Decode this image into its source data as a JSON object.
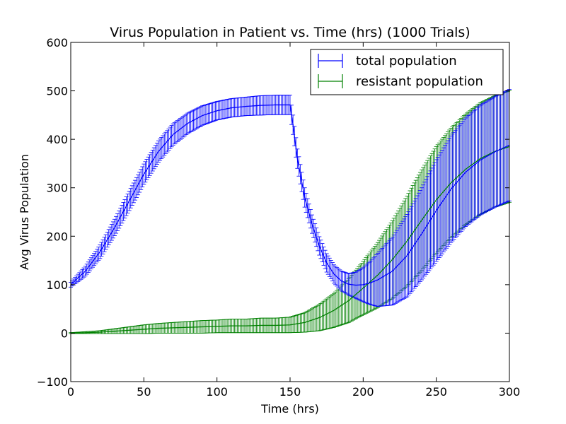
{
  "chart_data": {
    "type": "line",
    "title": "Virus Population in Patient vs. Time (hrs) (1000 Trials)",
    "xlabel": "Time (hrs)",
    "ylabel": "Avg Virus Population",
    "xlim": [
      0,
      300
    ],
    "ylim": [
      -100,
      600
    ],
    "xticks": [
      0,
      50,
      100,
      150,
      200,
      250,
      300
    ],
    "yticks": [
      -100,
      0,
      100,
      200,
      300,
      400,
      500,
      600
    ],
    "xtick_labels": [
      "0",
      "50",
      "100",
      "150",
      "200",
      "250",
      "300"
    ],
    "ytick_labels": [
      "−100",
      "0",
      "100",
      "200",
      "300",
      "400",
      "500",
      "600"
    ],
    "grid": false,
    "legend_position": "top-right",
    "error_bars": true,
    "series": [
      {
        "name": "total population",
        "color": "#0000ff",
        "x": [
          0,
          10,
          20,
          30,
          40,
          50,
          60,
          70,
          80,
          90,
          100,
          110,
          120,
          130,
          140,
          150,
          152,
          155,
          160,
          165,
          170,
          175,
          180,
          185,
          190,
          195,
          200,
          205,
          210,
          220,
          230,
          240,
          250,
          260,
          270,
          280,
          290,
          300
        ],
        "y": [
          100,
          128,
          168,
          218,
          273,
          328,
          375,
          410,
          433,
          449,
          459,
          465,
          468,
          470,
          471,
          471,
          430,
          360,
          280,
          225,
          180,
          145,
          122,
          108,
          101,
          99,
          100,
          104,
          110,
          128,
          160,
          205,
          253,
          297,
          332,
          357,
          374,
          388
        ],
        "err": [
          5,
          10,
          14,
          17,
          20,
          21,
          22,
          22,
          21,
          20,
          19,
          19,
          19,
          20,
          20,
          20,
          20,
          20,
          20,
          19,
          19,
          19,
          19,
          20,
          22,
          27,
          35,
          45,
          55,
          70,
          85,
          95,
          105,
          110,
          112,
          113,
          114,
          115
        ]
      },
      {
        "name": "resistant population",
        "color": "#008000",
        "x": [
          0,
          10,
          20,
          30,
          40,
          50,
          60,
          70,
          80,
          90,
          100,
          110,
          120,
          130,
          140,
          150,
          160,
          170,
          180,
          190,
          200,
          210,
          220,
          230,
          240,
          250,
          260,
          270,
          280,
          290,
          300
        ],
        "y": [
          0,
          1,
          2,
          4,
          6,
          8,
          10,
          11,
          12,
          13,
          14,
          15,
          15,
          16,
          16,
          17,
          22,
          32,
          47,
          67,
          93,
          120,
          152,
          190,
          233,
          275,
          310,
          338,
          360,
          375,
          385
        ],
        "err": [
          1,
          2,
          3,
          5,
          7,
          9,
          10,
          11,
          12,
          13,
          13,
          14,
          14,
          15,
          15,
          16,
          20,
          27,
          35,
          45,
          55,
          67,
          80,
          93,
          104,
          110,
          113,
          114,
          115,
          115,
          115
        ]
      }
    ]
  }
}
